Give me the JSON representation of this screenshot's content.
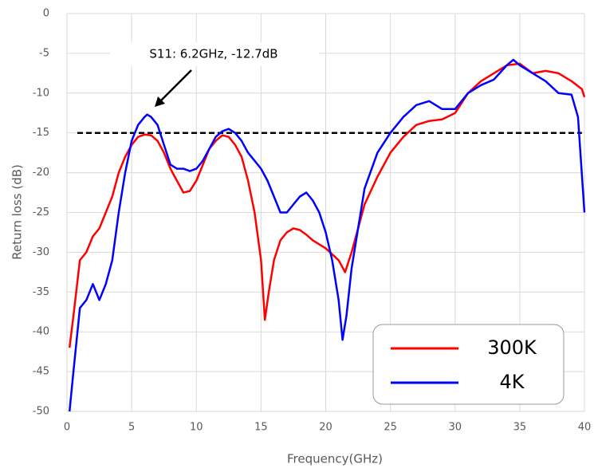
{
  "chart_data": {
    "type": "line",
    "x_label": "Frequency(GHz)",
    "y_label": "Return loss (dB)",
    "annotation": "S11: 6.2GHz, -12.7dB",
    "reference_line": -15,
    "xlim": [
      0,
      40
    ],
    "xticks": [
      0,
      5,
      10,
      15,
      20,
      25,
      30,
      35,
      40
    ],
    "ylim": [
      -50,
      0
    ],
    "yticks": [
      -50,
      -45,
      -40,
      -35,
      -30,
      -25,
      -20,
      -15,
      -10,
      -5,
      0
    ],
    "grid": true,
    "legend": "lower right",
    "series": [
      {
        "name": "300K",
        "color": "#ff0000",
        "x": [
          0.2,
          0.5,
          1,
          1.5,
          2,
          2.5,
          3,
          3.5,
          4,
          4.5,
          5,
          5.5,
          6,
          6.5,
          7,
          7.5,
          8,
          8.5,
          9,
          9.5,
          10,
          10.5,
          11,
          11.5,
          12,
          12.5,
          13,
          13.5,
          14,
          14.5,
          15,
          15.3,
          15.6,
          16,
          16.5,
          17,
          17.5,
          18,
          18.5,
          19,
          20,
          21,
          21.5,
          22,
          22.5,
          23,
          24,
          25,
          26,
          27,
          28,
          29,
          30,
          31,
          32,
          33,
          34,
          35,
          36,
          37,
          38,
          39,
          39.8,
          40
        ],
        "values": [
          -42,
          -38,
          -31,
          -30,
          -28,
          -27,
          -25,
          -23,
          -20,
          -18,
          -16.5,
          -15.5,
          -15.2,
          -15.3,
          -16,
          -17.5,
          -19.5,
          -21,
          -22.5,
          -22.3,
          -21,
          -19,
          -17,
          -16,
          -15.3,
          -15.5,
          -16.5,
          -18,
          -21,
          -25,
          -31,
          -38.5,
          -35,
          -31,
          -28.5,
          -27.5,
          -27,
          -27.2,
          -27.8,
          -28.5,
          -29.5,
          -31,
          -32.5,
          -30,
          -27,
          -24,
          -20.5,
          -17.5,
          -15.5,
          -14,
          -13.5,
          -13.3,
          -12.5,
          -10,
          -8.5,
          -7.5,
          -6.5,
          -6.3,
          -7.5,
          -7.2,
          -7.5,
          -8.5,
          -9.5,
          -10.5
        ]
      },
      {
        "name": "4K",
        "color": "#0000ff",
        "x": [
          0.2,
          0.5,
          1,
          1.5,
          2,
          2.5,
          3,
          3.5,
          4,
          4.5,
          5,
          5.5,
          6,
          6.2,
          6.5,
          7,
          7.5,
          8,
          8.5,
          9,
          9.5,
          10,
          10.5,
          11,
          11.5,
          12,
          12.5,
          13,
          13.5,
          14,
          14.5,
          15,
          15.5,
          16,
          16.5,
          17,
          17.5,
          18,
          18.5,
          19,
          19.5,
          20,
          20.5,
          21,
          21.3,
          21.6,
          22,
          22.5,
          23,
          24,
          25,
          26,
          27,
          28,
          29,
          30,
          31,
          32,
          33,
          34,
          34.5,
          35,
          36,
          37,
          38,
          39,
          39.5,
          40
        ],
        "values": [
          -50,
          -45,
          -37,
          -36,
          -34,
          -36,
          -34,
          -31,
          -25,
          -20,
          -16,
          -14,
          -13,
          -12.7,
          -13,
          -14,
          -16.5,
          -19,
          -19.5,
          -19.5,
          -19.8,
          -19.5,
          -18.5,
          -17,
          -15.5,
          -14.8,
          -14.5,
          -15,
          -16,
          -17.5,
          -18.5,
          -19.5,
          -21,
          -23,
          -25,
          -25,
          -24,
          -23,
          -22.5,
          -23.5,
          -25,
          -27.5,
          -31,
          -36,
          -41,
          -38,
          -32,
          -27,
          -22,
          -17.5,
          -15,
          -13,
          -11.5,
          -11,
          -12,
          -12,
          -10,
          -9,
          -8.3,
          -6.5,
          -5.8,
          -6.5,
          -7.5,
          -8.5,
          -10,
          -10.2,
          -13,
          -25
        ]
      }
    ]
  }
}
